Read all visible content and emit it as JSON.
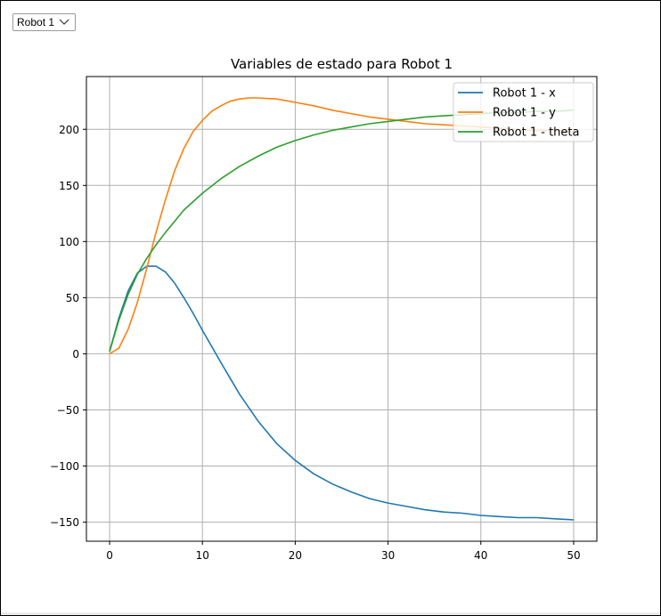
{
  "selector": {
    "value": "Robot 1",
    "icon": "chevron-down-icon"
  },
  "chart_data": {
    "type": "line",
    "title": "Variables de estado para Robot 1",
    "xlabel": "",
    "ylabel": "",
    "xlim": [
      -2.5,
      52.5
    ],
    "ylim": [
      -167,
      247
    ],
    "xticks": [
      0,
      10,
      20,
      30,
      40,
      50
    ],
    "yticks": [
      -150,
      -100,
      -50,
      0,
      50,
      100,
      150,
      200
    ],
    "tick_labels_x": [
      "0",
      "10",
      "20",
      "30",
      "40",
      "50"
    ],
    "tick_labels_y": [
      "−150",
      "−100",
      "−50",
      "0",
      "50",
      "100",
      "150",
      "200"
    ],
    "grid": true,
    "legend_position": "top-right",
    "series": [
      {
        "name": "Robot 1 - x",
        "color": "#1f77b4",
        "x": [
          0,
          1,
          2,
          3,
          4,
          5,
          6,
          7,
          8,
          9,
          10,
          12,
          14,
          16,
          18,
          20,
          22,
          24,
          26,
          28,
          30,
          32,
          34,
          36,
          38,
          40,
          42,
          44,
          46,
          48,
          50
        ],
        "y": [
          2,
          32,
          56,
          72,
          78,
          78,
          73,
          63,
          50,
          36,
          21,
          -8,
          -36,
          -60,
          -80,
          -95,
          -107,
          -116,
          -123,
          -129,
          -133,
          -136,
          -139,
          -141,
          -142,
          -144,
          -145,
          -146,
          -146,
          -147,
          -148
        ]
      },
      {
        "name": "Robot 1 - y",
        "color": "#ff7f0e",
        "x": [
          0,
          1,
          2,
          3,
          4,
          5,
          6,
          7,
          8,
          9,
          10,
          11,
          12,
          13,
          14,
          15,
          16,
          18,
          20,
          22,
          24,
          26,
          28,
          30,
          32,
          34,
          36,
          38,
          40,
          42,
          44,
          46,
          48,
          50
        ],
        "y": [
          0,
          5,
          22,
          46,
          76,
          108,
          137,
          163,
          183,
          198,
          208,
          216,
          221,
          225,
          227,
          228,
          228,
          227,
          224,
          221,
          217,
          214,
          211,
          209,
          207,
          205,
          204,
          203,
          202,
          201,
          200,
          199,
          199,
          198
        ]
      },
      {
        "name": "Robot 1 - theta",
        "color": "#2ca02c",
        "x": [
          0,
          1,
          2,
          3,
          4,
          5,
          6,
          8,
          10,
          12,
          14,
          16,
          18,
          20,
          22,
          24,
          26,
          28,
          30,
          32,
          34,
          36,
          38,
          40,
          42,
          44,
          46,
          48,
          50
        ],
        "y": [
          2,
          30,
          53,
          71,
          85,
          97,
          108,
          128,
          143,
          156,
          167,
          176,
          184,
          190,
          195,
          199,
          202,
          205,
          207,
          209,
          211,
          212,
          213,
          214,
          215,
          215,
          216,
          216,
          217
        ]
      }
    ]
  }
}
